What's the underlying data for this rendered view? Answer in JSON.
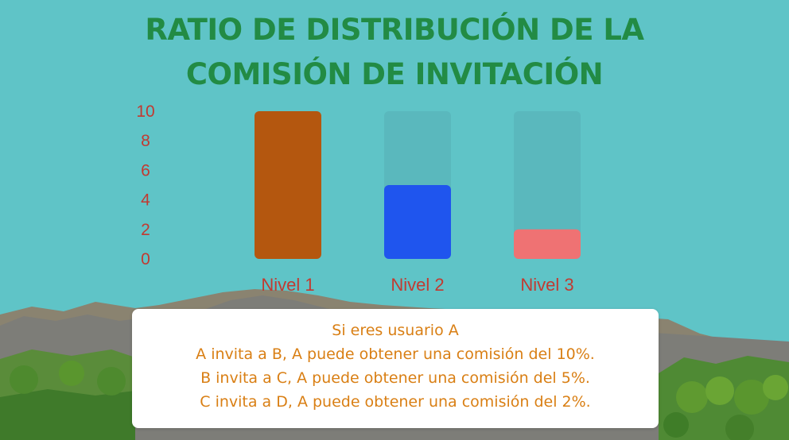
{
  "title_lines": [
    "RATIO DE DISTRIBUCIÓN DE LA",
    "COMISIÓN DE INVITACIÓN"
  ],
  "colors": {
    "background": "#5fc4c7",
    "title": "#228b44",
    "labels": "#c23a31",
    "track": "#5ab8bd",
    "info_text": "#d97f14"
  },
  "chart_data": {
    "type": "bar",
    "categories": [
      "Nivel 1",
      "Nivel 2",
      "Nivel 3"
    ],
    "values": [
      10,
      5,
      2
    ],
    "bar_colors": [
      "#b4570f",
      "#1f55ee",
      "#ef7273"
    ],
    "yticks": [
      0,
      2,
      4,
      6,
      8,
      10
    ],
    "ylim": [
      0,
      10
    ],
    "grid": false
  },
  "info": {
    "lines": [
      "Si eres usuario A",
      "A invita a B, A puede obtener una comisión del 10%.",
      "B invita a C, A puede obtener una comisión del 5%.",
      "C invita a D, A puede obtener una comisión del 2%."
    ]
  }
}
